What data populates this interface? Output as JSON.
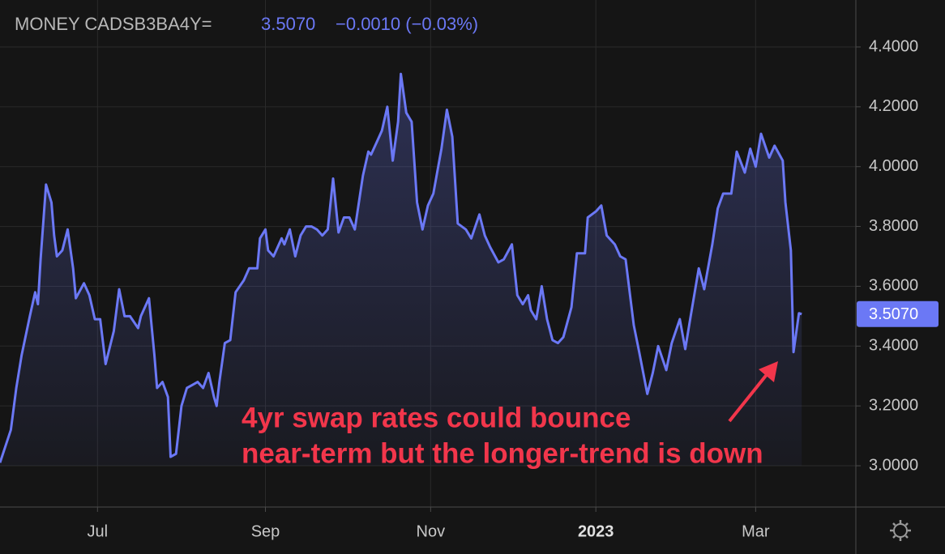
{
  "chart_data": {
    "type": "line",
    "title": "MONEY CADSB3BA4Y=",
    "last_label": "3.5070",
    "change_label": "−0.0010 (−0.03%)",
    "annotation": [
      "4yr swap rates could bounce",
      "near-term but the longer-trend is down"
    ],
    "color": "#6b78f5",
    "annotation_color": "#f2364b",
    "x": [
      0,
      4,
      6,
      8,
      11,
      13,
      14,
      15,
      17,
      19,
      20,
      21,
      23,
      25,
      27,
      28,
      31,
      33,
      35,
      37,
      39,
      42,
      44,
      46,
      48,
      51,
      52,
      55,
      57,
      58,
      60,
      62,
      63,
      65,
      67,
      69,
      71,
      73,
      75,
      77,
      79,
      80,
      81,
      83,
      85,
      87,
      90,
      92,
      95,
      96,
      98,
      99,
      101,
      104,
      105,
      107,
      109,
      111,
      113,
      115,
      117,
      119,
      121,
      123,
      125,
      127,
      129,
      131,
      134,
      136,
      137,
      139,
      141,
      143,
      145,
      147,
      148,
      150,
      152,
      154,
      156,
      158,
      160,
      163,
      165,
      167,
      169,
      172,
      174,
      177,
      179,
      181,
      184,
      186,
      189,
      191,
      193,
      195,
      196,
      198,
      200,
      202,
      204,
      206,
      208,
      211,
      213,
      216,
      217,
      220,
      222,
      224,
      227,
      229,
      231,
      234,
      236,
      239,
      241,
      243,
      246,
      248,
      251,
      253,
      255,
      258,
      260,
      263,
      265,
      267,
      270,
      272,
      275,
      277,
      279,
      281,
      284,
      286,
      289,
      290,
      292,
      293,
      295,
      296
    ],
    "values": [
      3.01,
      3.12,
      3.26,
      3.37,
      3.5,
      3.58,
      3.54,
      3.69,
      3.94,
      3.88,
      3.77,
      3.7,
      3.72,
      3.79,
      3.66,
      3.56,
      3.61,
      3.57,
      3.49,
      3.49,
      3.34,
      3.45,
      3.59,
      3.5,
      3.5,
      3.46,
      3.5,
      3.56,
      3.37,
      3.26,
      3.28,
      3.23,
      3.03,
      3.04,
      3.2,
      3.26,
      3.27,
      3.28,
      3.26,
      3.31,
      3.23,
      3.2,
      3.28,
      3.41,
      3.42,
      3.58,
      3.62,
      3.66,
      3.66,
      3.76,
      3.79,
      3.72,
      3.7,
      3.76,
      3.74,
      3.79,
      3.7,
      3.77,
      3.8,
      3.8,
      3.79,
      3.77,
      3.79,
      3.96,
      3.78,
      3.83,
      3.83,
      3.79,
      3.97,
      4.05,
      4.04,
      4.08,
      4.12,
      4.2,
      4.02,
      4.15,
      4.31,
      4.18,
      4.15,
      3.88,
      3.79,
      3.87,
      3.91,
      4.06,
      4.19,
      4.1,
      3.81,
      3.79,
      3.76,
      3.84,
      3.77,
      3.73,
      3.68,
      3.69,
      3.74,
      3.57,
      3.54,
      3.57,
      3.52,
      3.49,
      3.6,
      3.49,
      3.42,
      3.41,
      3.43,
      3.53,
      3.71,
      3.71,
      3.83,
      3.85,
      3.87,
      3.77,
      3.74,
      3.7,
      3.69,
      3.47,
      3.38,
      3.24,
      3.31,
      3.4,
      3.32,
      3.41,
      3.49,
      3.39,
      3.5,
      3.66,
      3.59,
      3.74,
      3.86,
      3.91,
      3.91,
      4.05,
      3.98,
      4.06,
      4.0,
      4.11,
      4.03,
      4.07,
      4.02,
      3.88,
      3.72,
      3.38,
      3.51,
      3.507
    ],
    "xlim": [
      0,
      316
    ],
    "xticks": [
      {
        "value": 36,
        "label": "Jul"
      },
      {
        "value": 98,
        "label": "Sep"
      },
      {
        "value": 159,
        "label": "Nov"
      },
      {
        "value": 220,
        "label": "2023"
      },
      {
        "value": 279,
        "label": "Mar"
      }
    ],
    "ylim": [
      2.862,
      4.557
    ],
    "yticks": [
      {
        "value": 3.0,
        "label": "3.0000"
      },
      {
        "value": 3.2,
        "label": "3.2000"
      },
      {
        "value": 3.4,
        "label": "3.4000"
      },
      {
        "value": 3.6,
        "label": "3.6000"
      },
      {
        "value": 3.8,
        "label": "3.8000"
      },
      {
        "value": 4.0,
        "label": "4.0000"
      },
      {
        "value": 4.2,
        "label": "4.2000"
      },
      {
        "value": 4.4,
        "label": "4.4000"
      }
    ],
    "grid": true
  }
}
